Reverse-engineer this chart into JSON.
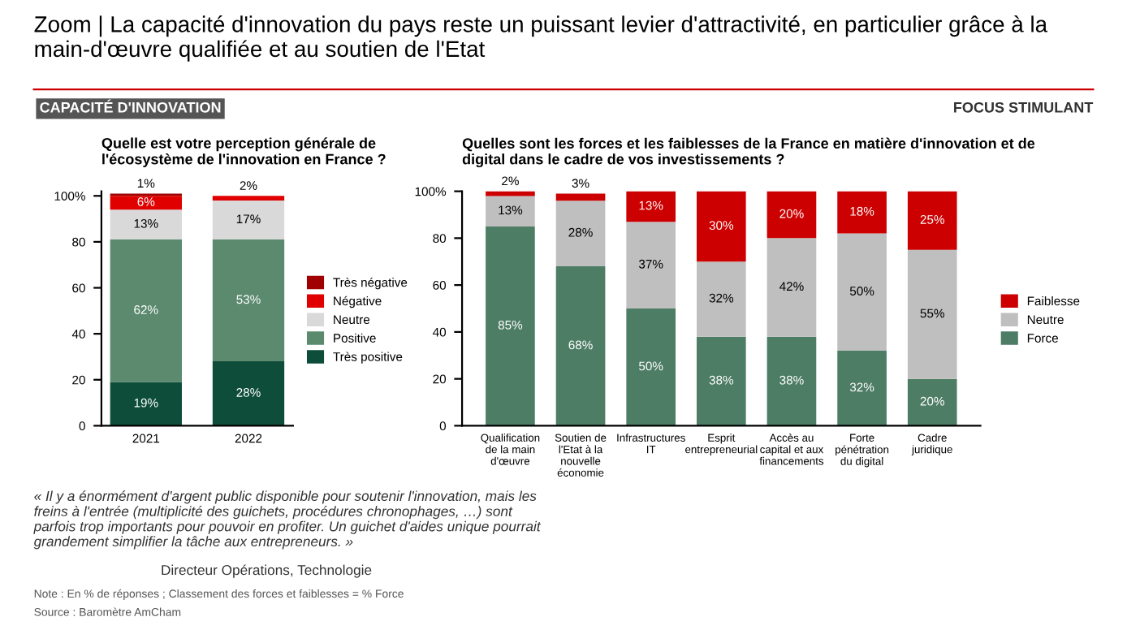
{
  "chart_data": [
    {
      "type": "bar",
      "stacked": true,
      "title": "Quelle est votre perception générale de\nl'écosystème de l'innovation en France ?",
      "annotations": [
        "Zoom | La capacité d'innovation du pays reste un puissant levier d'attractivité, en particulier grâce à la main-d'œuvre qualifiée et au soutien de l'Etat",
        "CAPACITÉ D'INNOVATION",
        "« Il y a énormément d'argent public disponible pour soutenir l'innovation, mais les freins à l'entrée (multiplicité des guichets, procédures chronophages, …) sont parfois trop importants pour pouvoir en profiter. Un guichet d'aides unique pourrait grandement simplifier la tâche aux entrepreneurs. »",
        "Directeur Opérations, Technologie",
        "Note : En % de réponses ; Classement des forces et faiblesses = % Force",
        "Source : Baromètre AmCham"
      ],
      "categories": [
        "2021",
        "2022"
      ],
      "series": [
        {
          "name": "Très positive",
          "color": "#0d4d3a",
          "values": [
            19,
            28
          ],
          "value_labels": [
            "19%",
            "28%"
          ]
        },
        {
          "name": "Positive",
          "color": "#5b8a6e",
          "values": [
            62,
            53
          ],
          "value_labels": [
            "62%",
            "53%"
          ]
        },
        {
          "name": "Neutre",
          "color": "#d9d9d9",
          "values": [
            13,
            17
          ],
          "value_labels": [
            "13%",
            "17%"
          ]
        },
        {
          "name": "Négative",
          "color": "#e00000",
          "values": [
            6,
            2
          ],
          "value_labels": [
            "6%",
            "2%"
          ]
        },
        {
          "name": "Très négative",
          "color": "#a00000",
          "values": [
            1,
            null
          ],
          "value_labels": [
            "1%",
            null
          ]
        }
      ],
      "ylim": [
        0,
        102
      ],
      "yticks": [
        0,
        20,
        40,
        60,
        80,
        {
          "value": 100,
          "label": "100%"
        }
      ],
      "legend": "right"
    },
    {
      "type": "bar",
      "stacked": true,
      "title": "Quelles sont les forces et les faiblesses de la France en matière d'innovation et de\ndigital dans le cadre de vos investissements ?",
      "annotations": [
        "FOCUS STIMULANT"
      ],
      "categories": [
        "Qualification\nde la main\nd'œuvre",
        "Soutien de\nl'Etat à la\nnouvelle\néconomie",
        "Infrastructures\nIT",
        "Esprit\nentrepreneurial",
        "Accès au\ncapital et aux\nfinancements",
        "Forte\npénétration\ndu digital",
        "Cadre\njuridique"
      ],
      "series": [
        {
          "name": "Force",
          "color": "#4e7d65",
          "values": [
            85,
            68,
            50,
            38,
            38,
            32,
            20
          ],
          "value_labels": [
            "85%",
            "68%",
            "50%",
            "38%",
            "38%",
            "32%",
            "20%"
          ]
        },
        {
          "name": "Neutre",
          "color": "#bfbfbf",
          "values": [
            13,
            28,
            37,
            32,
            42,
            50,
            55
          ],
          "value_labels": [
            "13%",
            "28%",
            "37%",
            "32%",
            "42%",
            "50%",
            "55%"
          ]
        },
        {
          "name": "Faiblesse",
          "color": "#cc0000",
          "values": [
            2,
            3,
            13,
            30,
            20,
            18,
            25
          ],
          "value_labels": [
            "2%",
            "3%",
            "13%",
            "30%",
            "20%",
            "18%",
            "25%"
          ]
        }
      ],
      "ylim": [
        0,
        100
      ],
      "yticks": [
        0,
        20,
        40,
        60,
        80,
        {
          "value": 100,
          "label": "100%"
        }
      ],
      "legend": "right"
    }
  ]
}
